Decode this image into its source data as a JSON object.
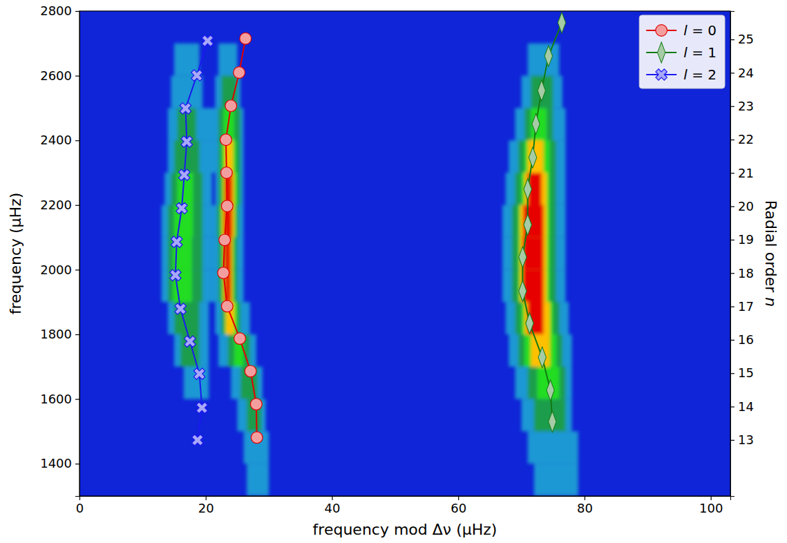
{
  "chart_data": {
    "type": "scatter",
    "x_label": "frequency mod Δν (μHz)",
    "y_label": "frequency (μHz)",
    "y2_label": "Radial order n",
    "xlim": [
      0,
      103.1
    ],
    "xticks": [
      0,
      20,
      40,
      60,
      80,
      100
    ],
    "ylim": [
      1300,
      2800
    ],
    "yticks": [
      1400,
      1600,
      1800,
      2000,
      2200,
      2400,
      2600,
      2800
    ],
    "y2lim": [
      11.32,
      25.85
    ],
    "y2ticks": [
      13,
      14,
      15,
      16,
      17,
      18,
      19,
      20,
      21,
      22,
      23,
      24,
      25
    ],
    "legend": "upper right",
    "heatmap": {
      "background": "#1024d8",
      "colors": [
        "#1b98d4",
        "#1f9d4c",
        "#22dd22",
        "#ffc000",
        "#e60000"
      ],
      "cells": [
        [
          1300,
          1400,
          26.5,
          30,
          1
        ],
        [
          1300,
          1400,
          72,
          79,
          1
        ],
        [
          1400,
          1500,
          26,
          30,
          1
        ],
        [
          1400,
          1500,
          71,
          79,
          1
        ],
        [
          1500,
          1600,
          25,
          29.5,
          1
        ],
        [
          1500,
          1600,
          26.5,
          28.8,
          2
        ],
        [
          1500,
          1600,
          70,
          78,
          1
        ],
        [
          1500,
          1600,
          72,
          77,
          2
        ],
        [
          1600,
          1700,
          16.5,
          20.5,
          1
        ],
        [
          1600,
          1700,
          24,
          29,
          1
        ],
        [
          1600,
          1700,
          25.5,
          28.2,
          2
        ],
        [
          1600,
          1700,
          69,
          78,
          1
        ],
        [
          1600,
          1700,
          71,
          77,
          2
        ],
        [
          1600,
          1700,
          72.5,
          76,
          3
        ],
        [
          1700,
          1800,
          15,
          20.5,
          1
        ],
        [
          1700,
          1800,
          16,
          19,
          2
        ],
        [
          1700,
          1800,
          22,
          28,
          1
        ],
        [
          1700,
          1800,
          23.5,
          27,
          2
        ],
        [
          1700,
          1800,
          24.5,
          26,
          3
        ],
        [
          1700,
          1800,
          68,
          78,
          1
        ],
        [
          1700,
          1800,
          69.5,
          76.5,
          2
        ],
        [
          1700,
          1800,
          70.5,
          75.5,
          3
        ],
        [
          1700,
          1800,
          71.5,
          74.5,
          4
        ],
        [
          1800,
          1900,
          14,
          20.5,
          1
        ],
        [
          1800,
          1900,
          15,
          19,
          2
        ],
        [
          1800,
          1900,
          21.5,
          27,
          1
        ],
        [
          1800,
          1900,
          22.5,
          25.5,
          2
        ],
        [
          1800,
          1900,
          23,
          25,
          3
        ],
        [
          1800,
          1900,
          23.2,
          24.5,
          4
        ],
        [
          1800,
          1900,
          67.5,
          77.5,
          1
        ],
        [
          1800,
          1900,
          69,
          76,
          2
        ],
        [
          1800,
          1900,
          70,
          75,
          3
        ],
        [
          1800,
          1900,
          70.5,
          74.5,
          4
        ],
        [
          1800,
          1900,
          71,
          73.5,
          5
        ],
        [
          1900,
          2000,
          13,
          21,
          1
        ],
        [
          1900,
          2000,
          14,
          19.5,
          2
        ],
        [
          1900,
          2000,
          14.8,
          17.8,
          3
        ],
        [
          1900,
          2000,
          21,
          26,
          1
        ],
        [
          1900,
          2000,
          22,
          25,
          2
        ],
        [
          1900,
          2000,
          22.5,
          24.5,
          3
        ],
        [
          1900,
          2000,
          22.8,
          24.2,
          4
        ],
        [
          1900,
          2000,
          23,
          24,
          5
        ],
        [
          1900,
          2000,
          67,
          77,
          1
        ],
        [
          1900,
          2000,
          68.5,
          75.5,
          2
        ],
        [
          1900,
          2000,
          69.5,
          74.5,
          3
        ],
        [
          1900,
          2000,
          69.8,
          74,
          4
        ],
        [
          1900,
          2000,
          70.2,
          73.5,
          5
        ],
        [
          2000,
          2100,
          13,
          21,
          1
        ],
        [
          2000,
          2100,
          14,
          19.5,
          2
        ],
        [
          2000,
          2100,
          14.8,
          17.8,
          3
        ],
        [
          2000,
          2100,
          21,
          26,
          1
        ],
        [
          2000,
          2100,
          22,
          25,
          2
        ],
        [
          2000,
          2100,
          22.5,
          24.5,
          3
        ],
        [
          2000,
          2100,
          22.8,
          24.2,
          4
        ],
        [
          2000,
          2100,
          22.9,
          24,
          5
        ],
        [
          2000,
          2100,
          67,
          77,
          1
        ],
        [
          2000,
          2100,
          68.5,
          75.5,
          2
        ],
        [
          2000,
          2100,
          69.5,
          74.5,
          3
        ],
        [
          2000,
          2100,
          69.8,
          74,
          4
        ],
        [
          2000,
          2100,
          70.2,
          73.5,
          5
        ],
        [
          2100,
          2200,
          13,
          21,
          1
        ],
        [
          2100,
          2200,
          14,
          19.5,
          2
        ],
        [
          2100,
          2200,
          15,
          18,
          3
        ],
        [
          2100,
          2200,
          21,
          26,
          1
        ],
        [
          2100,
          2200,
          21.8,
          25.2,
          2
        ],
        [
          2100,
          2200,
          22.3,
          24.8,
          3
        ],
        [
          2100,
          2200,
          22.6,
          24.5,
          4
        ],
        [
          2100,
          2200,
          22.9,
          24.2,
          5
        ],
        [
          2100,
          2200,
          67,
          77,
          1
        ],
        [
          2100,
          2200,
          68.5,
          75.5,
          2
        ],
        [
          2100,
          2200,
          69.5,
          74.5,
          3
        ],
        [
          2100,
          2200,
          69.8,
          74,
          4
        ],
        [
          2100,
          2200,
          70.3,
          73.5,
          5
        ],
        [
          2200,
          2300,
          13.5,
          21,
          1
        ],
        [
          2200,
          2300,
          14.5,
          19.5,
          2
        ],
        [
          2200,
          2300,
          15.5,
          18,
          3
        ],
        [
          2200,
          2300,
          21.5,
          26,
          1
        ],
        [
          2200,
          2300,
          22,
          25.5,
          2
        ],
        [
          2200,
          2300,
          22.5,
          25,
          3
        ],
        [
          2200,
          2300,
          22.8,
          24.5,
          4
        ],
        [
          2200,
          2300,
          23,
          24.2,
          5
        ],
        [
          2200,
          2300,
          67.5,
          77,
          1
        ],
        [
          2200,
          2300,
          69,
          75.5,
          2
        ],
        [
          2200,
          2300,
          70,
          74.5,
          3
        ],
        [
          2200,
          2300,
          70.5,
          74,
          4
        ],
        [
          2200,
          2300,
          71,
          73.2,
          5
        ],
        [
          2300,
          2400,
          14,
          26,
          1
        ],
        [
          2300,
          2400,
          15,
          19,
          2
        ],
        [
          2300,
          2400,
          22,
          25.5,
          2
        ],
        [
          2300,
          2400,
          22.5,
          24.8,
          3
        ],
        [
          2300,
          2400,
          23,
          24.3,
          4
        ],
        [
          2300,
          2400,
          68,
          77,
          1
        ],
        [
          2300,
          2400,
          69.5,
          75.5,
          2
        ],
        [
          2300,
          2400,
          70.5,
          74.5,
          3
        ],
        [
          2300,
          2400,
          71,
          73.5,
          4
        ],
        [
          2400,
          2500,
          14,
          26,
          1
        ],
        [
          2400,
          2500,
          15.5,
          18.5,
          2
        ],
        [
          2400,
          2500,
          22,
          25.5,
          2
        ],
        [
          2400,
          2500,
          22.8,
          24.5,
          3
        ],
        [
          2400,
          2500,
          69,
          77,
          1
        ],
        [
          2400,
          2500,
          70.5,
          75,
          2
        ],
        [
          2400,
          2500,
          71.5,
          74,
          3
        ],
        [
          2500,
          2600,
          14.5,
          19.5,
          1
        ],
        [
          2500,
          2600,
          21.5,
          25.5,
          1
        ],
        [
          2500,
          2600,
          22.5,
          25,
          2
        ],
        [
          2500,
          2600,
          70,
          76.5,
          1
        ],
        [
          2500,
          2600,
          71.5,
          75,
          2
        ],
        [
          2600,
          2700,
          15,
          19,
          1
        ],
        [
          2600,
          2700,
          22,
          25,
          1
        ],
        [
          2600,
          2700,
          71,
          76,
          1
        ]
      ]
    },
    "series": [
      {
        "name": "l = 0",
        "color": "#e00000",
        "marker": "o",
        "x": [
          28.1,
          28.0,
          27.1,
          25.4,
          23.4,
          22.8,
          23.0,
          23.4,
          23.3,
          23.2,
          24.0,
          25.3,
          26.3
        ],
        "values": [
          1481,
          1584,
          1686,
          1787,
          1887,
          1990,
          2092,
          2197,
          2300,
          2402,
          2507,
          2610,
          2715
        ]
      },
      {
        "name": "l = 1",
        "color": "#127a12",
        "marker": "d",
        "x": [
          74.9,
          74.6,
          73.3,
          71.3,
          70.2,
          70.2,
          71.0,
          71.0,
          71.8,
          72.3,
          73.2,
          74.3,
          76.4
        ],
        "values": [
          1530,
          1627,
          1729,
          1834,
          1934,
          2039,
          2139,
          2249,
          2347,
          2451,
          2554,
          2661,
          2764
        ]
      },
      {
        "name": "l = 2",
        "color": "#1a1af0",
        "marker": "X",
        "x": [
          18.7,
          19.4,
          19.0,
          17.5,
          16.0,
          15.2,
          15.4,
          16.2,
          16.6,
          17.0,
          16.8,
          18.6,
          20.3
        ],
        "values": [
          1473,
          1573,
          1678,
          1778,
          1879,
          1983,
          2086,
          2190,
          2293,
          2396,
          2499,
          2601,
          2708
        ]
      }
    ]
  }
}
